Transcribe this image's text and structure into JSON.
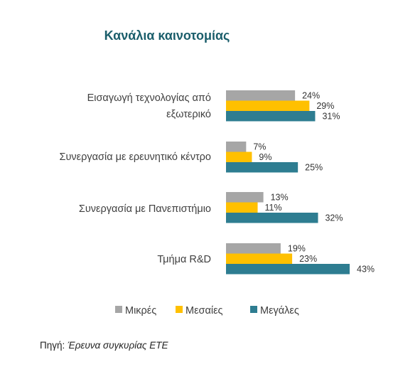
{
  "chart_data": {
    "type": "bar",
    "orientation": "horizontal",
    "title": "Κανάλια καινοτομίας",
    "categories": [
      [
        "Εισαγωγή τεχνολογίας από",
        "εξωτερικό"
      ],
      [
        "Συνεργασία με ερευνητικό κέντρο"
      ],
      [
        "Συνεργασία με Πανεπιστήμιο"
      ],
      [
        "Τμήμα R&D"
      ]
    ],
    "series": [
      {
        "name": "Μικρές",
        "color": "#a6a6a6",
        "values": [
          24,
          7,
          13,
          19
        ]
      },
      {
        "name": "Μεσαίες",
        "color": "#ffc000",
        "values": [
          29,
          9,
          11,
          23
        ]
      },
      {
        "name": "Μεγάλες",
        "color": "#2e7d91",
        "values": [
          31,
          25,
          32,
          43
        ]
      }
    ],
    "value_suffix": "%",
    "xlim": [
      0,
      43
    ],
    "grid": false,
    "legend_position": "bottom"
  },
  "source": {
    "label": "Πηγή:",
    "value": "Έρευνα συγκυρίας ΕΤΕ"
  }
}
